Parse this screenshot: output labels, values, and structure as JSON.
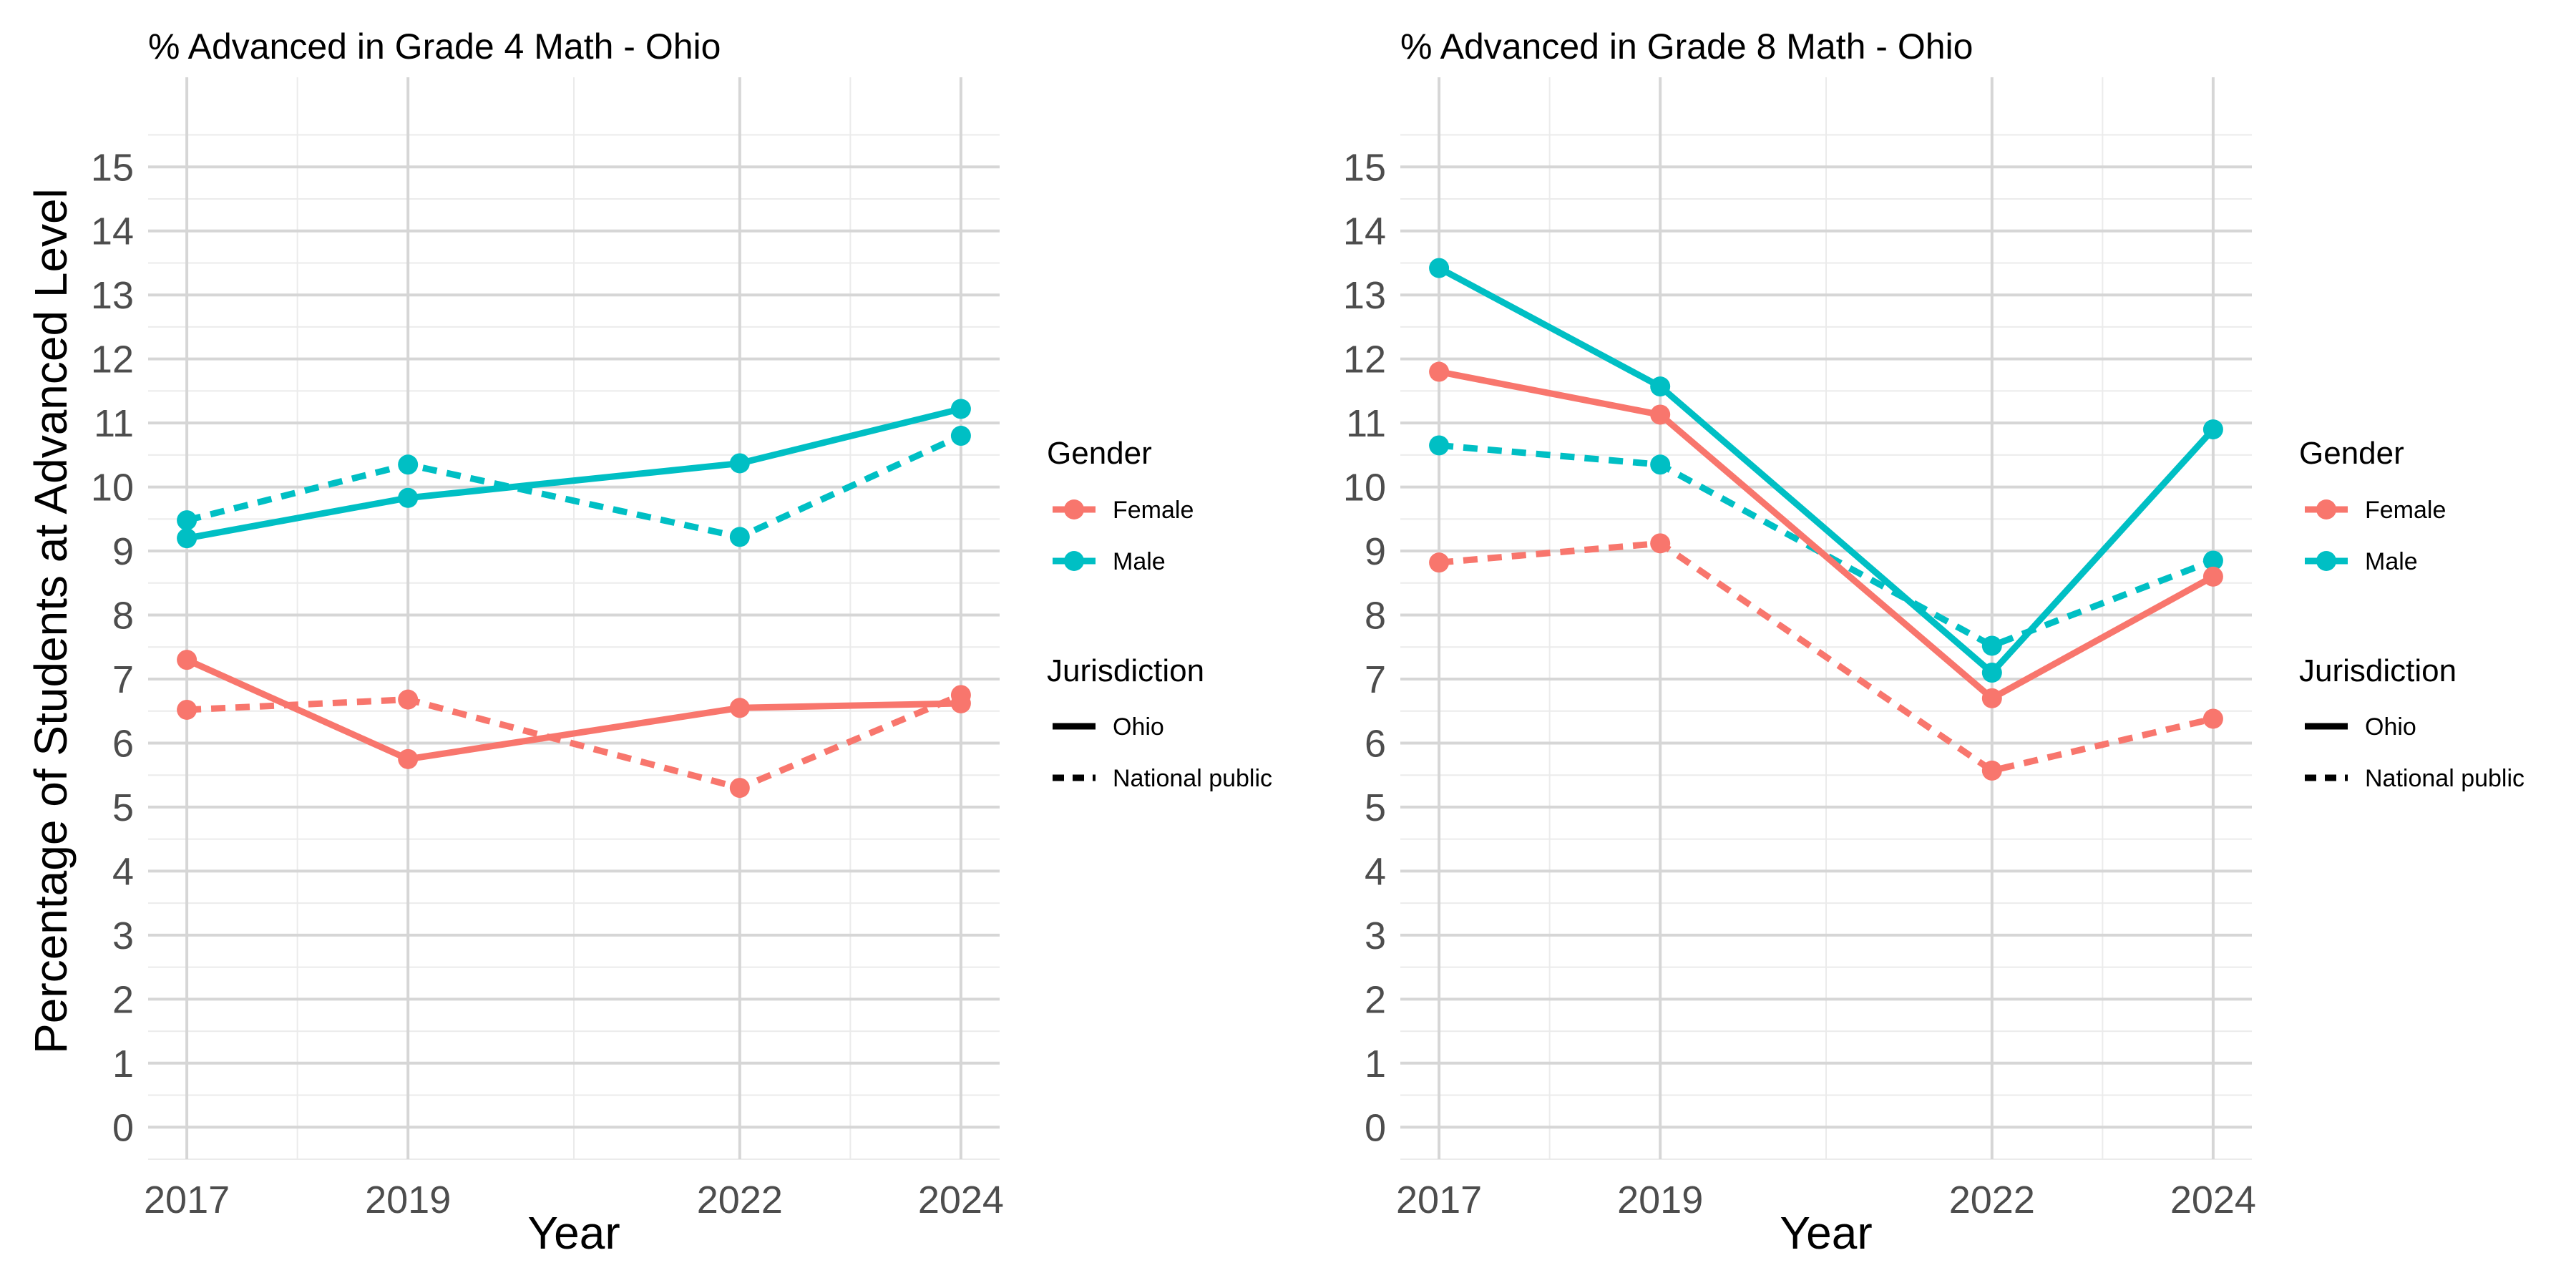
{
  "ylabel": "Percentage of Students at Advanced Level",
  "colors": {
    "Female": "#F8766D",
    "Male": "#00BFC4"
  },
  "chart_data": [
    {
      "type": "line",
      "title": "% Advanced in Grade 4 Math - Ohio",
      "xlabel": "Year",
      "ylabel": "Percentage of Students at Advanced Level",
      "x": [
        2017,
        2019,
        2022,
        2024
      ],
      "xlim": [
        2016.65,
        2024.35
      ],
      "ylim": [
        -0.5,
        16.4
      ],
      "yticks": [
        0,
        1,
        2,
        3,
        4,
        5,
        6,
        7,
        8,
        9,
        10,
        11,
        12,
        13,
        14,
        15
      ],
      "grid": true,
      "legend_position": "right",
      "series": [
        {
          "gender": "Female",
          "jurisdiction": "Ohio",
          "values": [
            7.3,
            5.75,
            6.55,
            6.62
          ]
        },
        {
          "gender": "Female",
          "jurisdiction": "National public",
          "values": [
            6.52,
            6.68,
            5.3,
            6.75
          ]
        },
        {
          "gender": "Male",
          "jurisdiction": "Ohio",
          "values": [
            9.2,
            9.83,
            10.37,
            11.22
          ]
        },
        {
          "gender": "Male",
          "jurisdiction": "National public",
          "values": [
            9.48,
            10.35,
            9.22,
            10.8
          ]
        }
      ]
    },
    {
      "type": "line",
      "title": "% Advanced in Grade 8 Math - Ohio",
      "xlabel": "Year",
      "ylabel": "",
      "x": [
        2017,
        2019,
        2022,
        2024
      ],
      "xlim": [
        2016.65,
        2024.35
      ],
      "ylim": [
        -0.5,
        16.4
      ],
      "yticks": [
        0,
        1,
        2,
        3,
        4,
        5,
        6,
        7,
        8,
        9,
        10,
        11,
        12,
        13,
        14,
        15
      ],
      "grid": true,
      "legend_position": "right",
      "series": [
        {
          "gender": "Female",
          "jurisdiction": "Ohio",
          "values": [
            11.8,
            11.13,
            6.7,
            8.6
          ]
        },
        {
          "gender": "Female",
          "jurisdiction": "National public",
          "values": [
            8.82,
            9.12,
            5.57,
            6.38
          ]
        },
        {
          "gender": "Male",
          "jurisdiction": "Ohio",
          "values": [
            13.42,
            11.57,
            7.1,
            10.9
          ]
        },
        {
          "gender": "Male",
          "jurisdiction": "National public",
          "values": [
            10.65,
            10.35,
            7.52,
            8.85
          ]
        }
      ]
    }
  ],
  "legend": {
    "gender_title": "Gender",
    "gender_items": [
      "Female",
      "Male"
    ],
    "jurisdiction_title": "Jurisdiction",
    "jurisdiction_items": [
      "Ohio",
      "National public"
    ]
  }
}
